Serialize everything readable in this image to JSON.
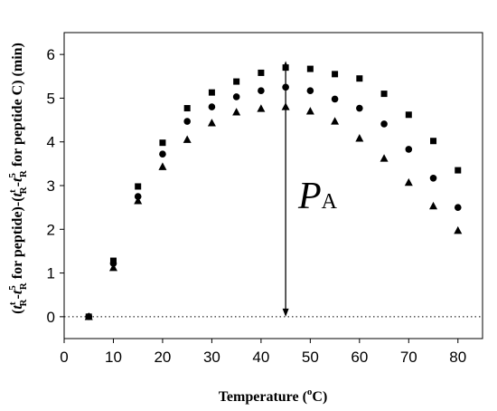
{
  "chart_data": {
    "type": "scatter",
    "xlabel": "Temperature (°C)",
    "xlabel_parts": {
      "before": "Temperature (",
      "sup": "o",
      "after": "C)"
    },
    "ylabel": "(t^t_R - t^5_R for peptide) - (t^t_R - t^5_R for peptide C) (min)",
    "ylabel_parts": {
      "p1": "(",
      "t1": "t",
      "s1": "t",
      "b1": "R",
      "p2": "-",
      "t2": "t",
      "s2": "5",
      "b2": "R",
      "p3": " for peptide)-(",
      "t3": "t",
      "s3": "t",
      "b3": "R",
      "p4": "-",
      "t4": "t",
      "s4": "5",
      "b4": "R",
      "p5": " for peptide C) (min)"
    },
    "xlim": [
      0,
      85
    ],
    "ylim": [
      -0.5,
      6.5
    ],
    "xticks": [
      0,
      10,
      20,
      30,
      40,
      50,
      60,
      70,
      80
    ],
    "yticks": [
      0,
      1,
      2,
      3,
      4,
      5,
      6
    ],
    "reference_line": {
      "y": 0,
      "style": "dotted"
    },
    "x": [
      5,
      10,
      15,
      20,
      25,
      30,
      35,
      40,
      45,
      50,
      55,
      60,
      65,
      70,
      75,
      80
    ],
    "series": [
      {
        "marker": "square",
        "values": [
          0,
          1.28,
          2.98,
          3.98,
          4.77,
          5.13,
          5.38,
          5.58,
          5.7,
          5.67,
          5.55,
          5.45,
          5.1,
          4.62,
          4.02,
          3.35
        ]
      },
      {
        "marker": "circle",
        "values": [
          0,
          1.22,
          2.75,
          3.72,
          4.47,
          4.8,
          5.03,
          5.17,
          5.25,
          5.17,
          4.98,
          4.77,
          4.41,
          3.83,
          3.17,
          2.5
        ]
      },
      {
        "marker": "triangle",
        "values": [
          0,
          1.12,
          2.65,
          3.43,
          4.05,
          4.43,
          4.68,
          4.76,
          4.8,
          4.7,
          4.47,
          4.08,
          3.62,
          3.07,
          2.53,
          1.97
        ]
      }
    ],
    "annotation": {
      "label_main": "P",
      "label_sub": "A",
      "x": 45,
      "y_top": 5.85,
      "y_bottom": 0,
      "arrows": "both"
    }
  }
}
